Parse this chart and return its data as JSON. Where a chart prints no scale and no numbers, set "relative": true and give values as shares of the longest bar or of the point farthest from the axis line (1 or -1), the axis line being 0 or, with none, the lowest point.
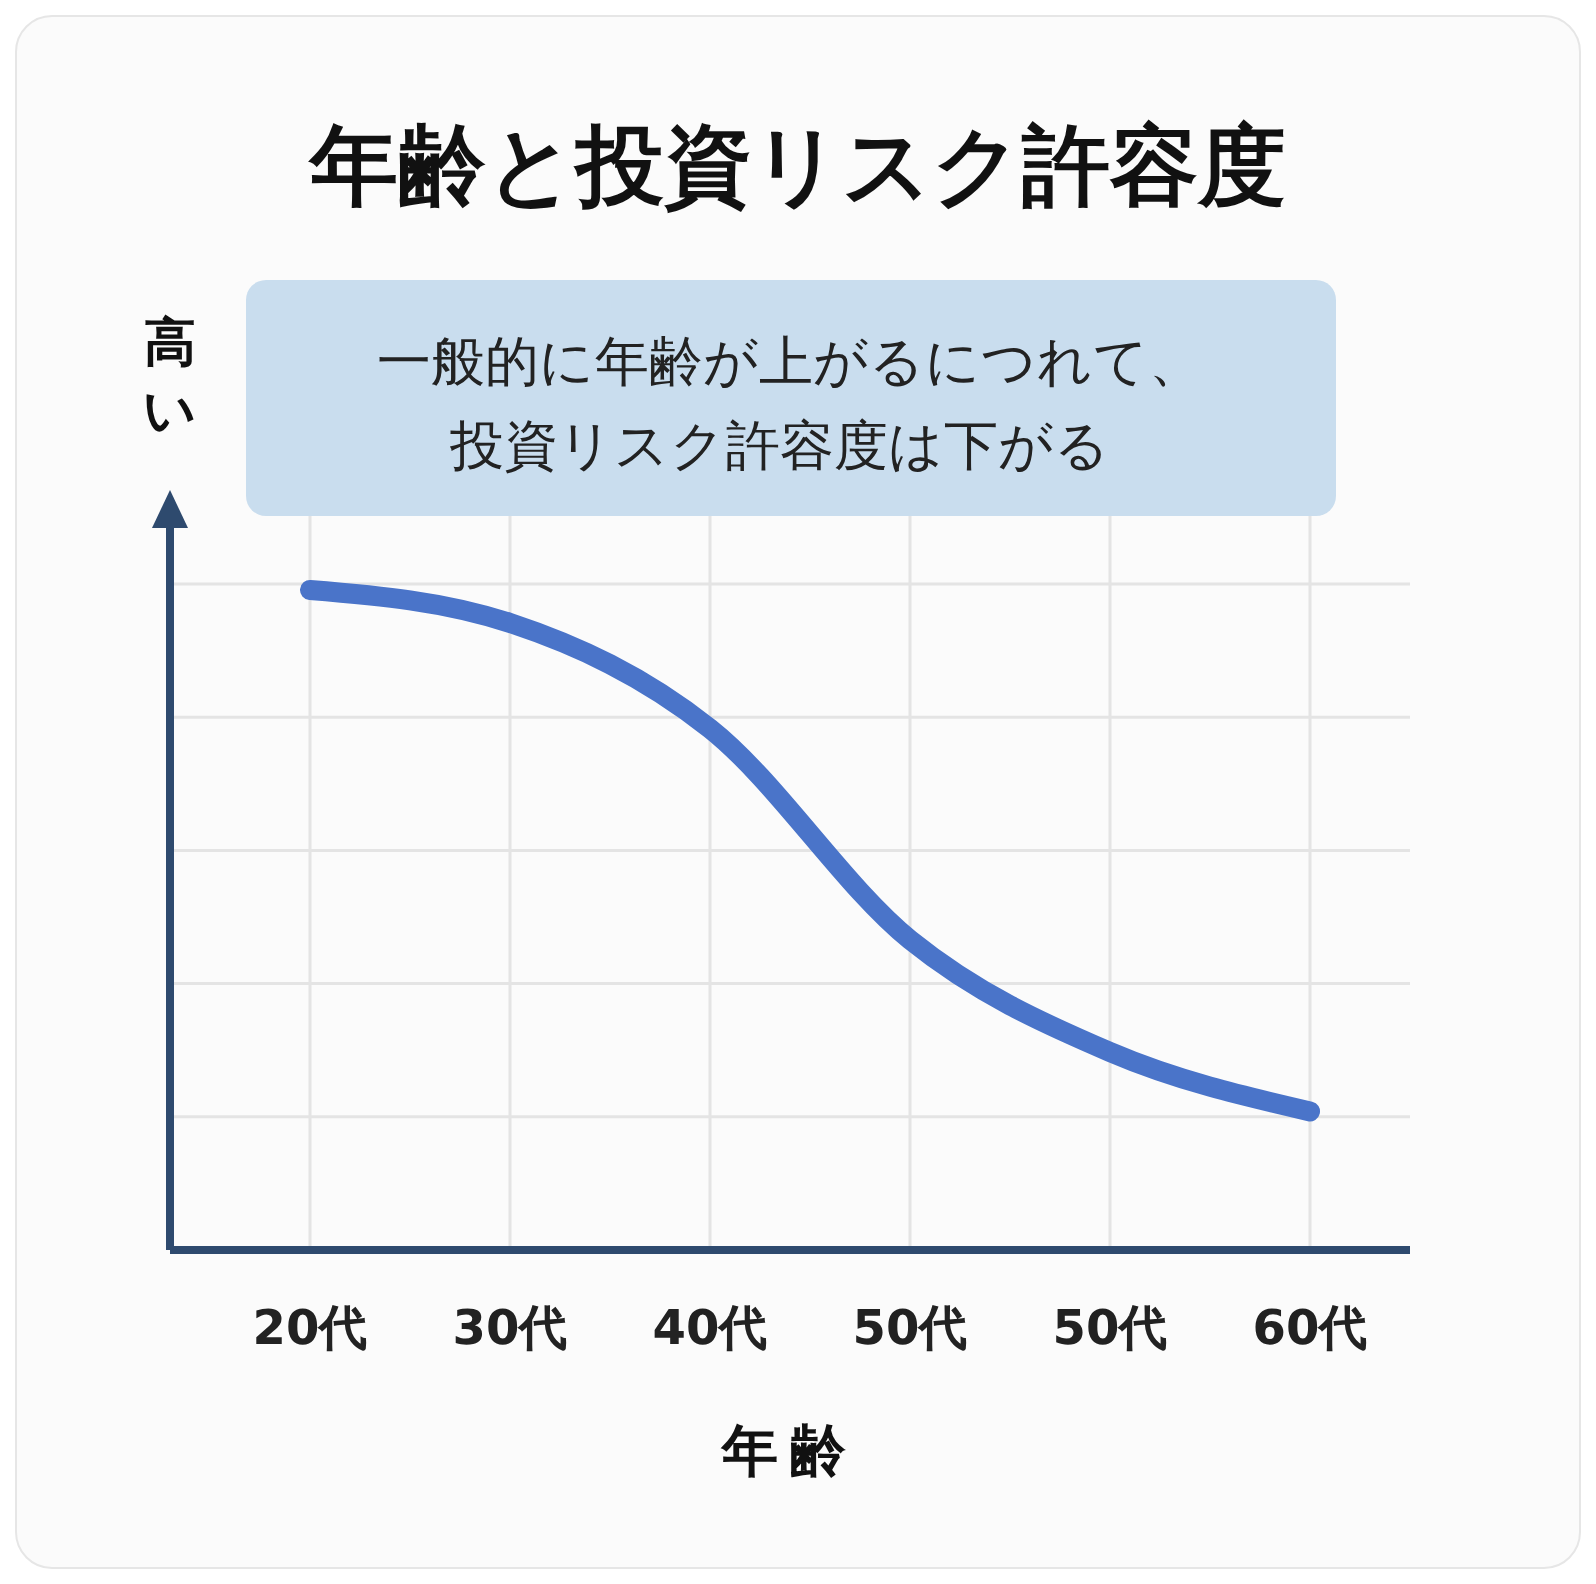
{
  "chart_data": {
    "type": "line",
    "title": "年齢と投資リスク許容度",
    "xlabel": "年齢",
    "ylabel": "高い",
    "relative": true,
    "grid": true,
    "marker": "none",
    "line_style": "solid",
    "categories": [
      "20代",
      "30代",
      "40代",
      "50代",
      "50代",
      "60代"
    ],
    "series": [
      {
        "color": "#4a74c9",
        "values": [
          1,
          0.95,
          0.79,
          0.47,
          0.3,
          0.21
        ]
      }
    ],
    "annotations": [
      "一般的に年齢が上がるにつれて、",
      "投資リスク許容度は下がる"
    ]
  }
}
